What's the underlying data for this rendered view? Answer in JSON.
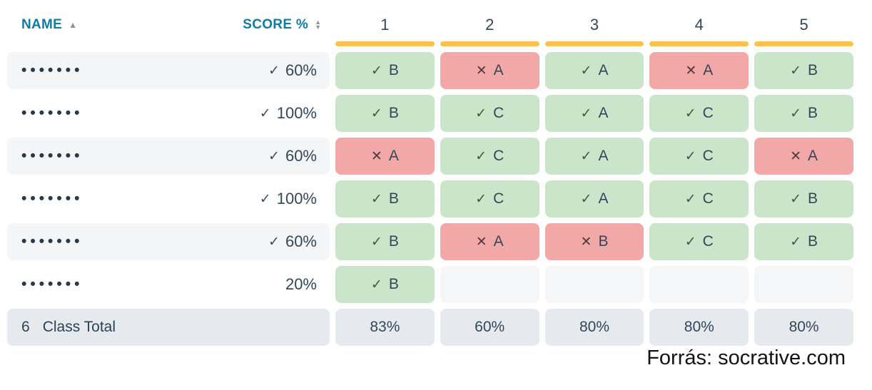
{
  "header": {
    "name_label": "NAME",
    "score_label": "SCORE %",
    "questions": [
      "1",
      "2",
      "3",
      "4",
      "5"
    ]
  },
  "icons": {
    "check": "✓",
    "cross": "✕",
    "sort_asc": "▲",
    "sort_up": "▲",
    "sort_down": "▼"
  },
  "students": [
    {
      "name_mask": "•••••••",
      "score": "60%",
      "has_check": true,
      "answers": [
        {
          "correct": true,
          "choice": "B"
        },
        {
          "correct": false,
          "choice": "A"
        },
        {
          "correct": true,
          "choice": "A"
        },
        {
          "correct": false,
          "choice": "A"
        },
        {
          "correct": true,
          "choice": "B"
        }
      ]
    },
    {
      "name_mask": "•••••••",
      "score": "100%",
      "has_check": true,
      "answers": [
        {
          "correct": true,
          "choice": "B"
        },
        {
          "correct": true,
          "choice": "C"
        },
        {
          "correct": true,
          "choice": "A"
        },
        {
          "correct": true,
          "choice": "C"
        },
        {
          "correct": true,
          "choice": "B"
        }
      ]
    },
    {
      "name_mask": "•••••••",
      "score": "60%",
      "has_check": true,
      "answers": [
        {
          "correct": false,
          "choice": "A"
        },
        {
          "correct": true,
          "choice": "C"
        },
        {
          "correct": true,
          "choice": "A"
        },
        {
          "correct": true,
          "choice": "C"
        },
        {
          "correct": false,
          "choice": "A"
        }
      ]
    },
    {
      "name_mask": "•••••••",
      "score": "100%",
      "has_check": true,
      "answers": [
        {
          "correct": true,
          "choice": "B"
        },
        {
          "correct": true,
          "choice": "C"
        },
        {
          "correct": true,
          "choice": "A"
        },
        {
          "correct": true,
          "choice": "C"
        },
        {
          "correct": true,
          "choice": "B"
        }
      ]
    },
    {
      "name_mask": "•••••••",
      "score": "60%",
      "has_check": true,
      "answers": [
        {
          "correct": true,
          "choice": "B"
        },
        {
          "correct": false,
          "choice": "A"
        },
        {
          "correct": false,
          "choice": "B"
        },
        {
          "correct": true,
          "choice": "C"
        },
        {
          "correct": true,
          "choice": "B"
        }
      ]
    },
    {
      "name_mask": "•••••••",
      "score": "20%",
      "has_check": false,
      "answers": [
        {
          "correct": true,
          "choice": "B"
        },
        null,
        null,
        null,
        null
      ]
    }
  ],
  "total_row": {
    "count": "6",
    "label": "Class Total",
    "values": [
      "83%",
      "60%",
      "80%",
      "80%",
      "80%"
    ]
  },
  "caption": "Forrás: socrative.com",
  "colors": {
    "header_blue": "#107ca5",
    "question_bar_yellow": "#fcc14e",
    "correct_bg": "#cbe5ca",
    "incorrect_bg": "#f3a8a8",
    "empty_bg": "#f4f6f8",
    "row_stripe": "#f3f5f6",
    "total_bg": "#e6eaee",
    "text_dark": "#33475b"
  }
}
